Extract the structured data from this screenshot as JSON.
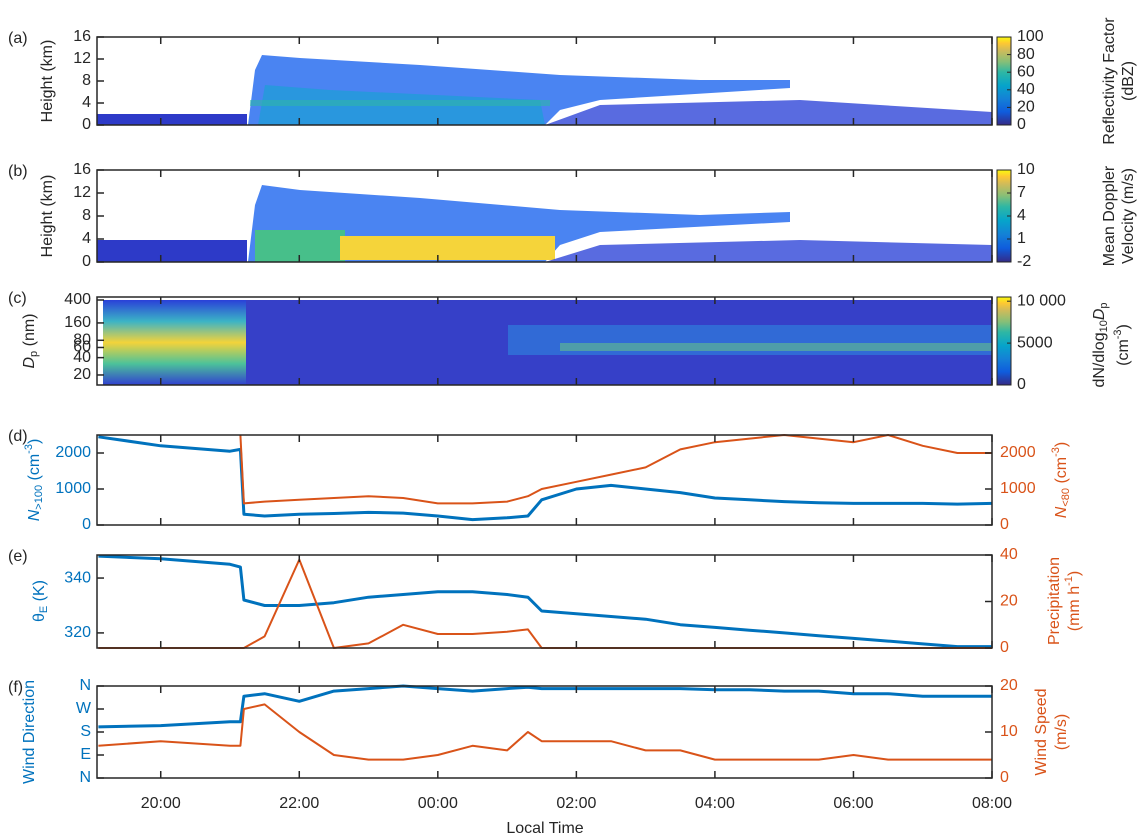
{
  "x_axis": {
    "label": "Local Time",
    "xlim": [
      19.08,
      32
    ],
    "xticks": [
      {
        "value": 20,
        "label": "20:00"
      },
      {
        "value": 22,
        "label": "22:00"
      },
      {
        "value": 24,
        "label": "00:00"
      },
      {
        "value": 26,
        "label": "02:00"
      },
      {
        "value": 28,
        "label": "04:00"
      },
      {
        "value": 30,
        "label": "06:00"
      },
      {
        "value": 32,
        "label": "08:00"
      }
    ]
  },
  "chart_data": [
    {
      "type": "heatmap",
      "panel": "(a)",
      "ylabel": "Height (km)",
      "ylim": [
        0,
        16
      ],
      "yticks": [
        0,
        4,
        8,
        12,
        16
      ],
      "colorbar": {
        "lim": [
          0,
          100
        ],
        "ticks": [
          0,
          20,
          40,
          60,
          80,
          100
        ],
        "label": [
          "Reflectivity Factor",
          "(dBZ)"
        ]
      }
    },
    {
      "type": "heatmap",
      "panel": "(b)",
      "ylabel": "Height (km)",
      "ylim": [
        0,
        16
      ],
      "yticks": [
        0,
        4,
        8,
        12,
        16
      ],
      "colorbar": {
        "lim": [
          -2,
          10
        ],
        "ticks": [
          -2,
          1,
          4,
          7,
          10
        ],
        "label": [
          "Mean Doppler",
          "Velocity (m/s)"
        ]
      }
    },
    {
      "type": "heatmap",
      "panel": "(c)",
      "ylabel": [
        "D",
        "p",
        " (nm)"
      ],
      "log_y": true,
      "ylim": [
        13.4,
        451
      ],
      "yticks": [
        20,
        40,
        60,
        80,
        160,
        400
      ],
      "colorbar": {
        "lim": [
          0,
          10500
        ],
        "ticks": [
          0,
          5000,
          {
            "value": 10000,
            "label": "10 000"
          }
        ],
        "label": [
          "dN/dlog",
          "10",
          "D",
          "p",
          "(cm",
          "-3",
          ")"
        ]
      }
    },
    {
      "type": "line",
      "panel": "(d)",
      "ylabel": [
        "N",
        ">100",
        " (cm",
        "-3",
        ")"
      ],
      "y2label": [
        "N",
        "<80",
        " (cm",
        "-3",
        ")"
      ],
      "ylim": [
        0,
        2500
      ],
      "yticks": [
        0,
        1000,
        2000
      ],
      "y2lim": [
        0,
        2500
      ],
      "y2ticks": [
        0,
        1000,
        2000
      ],
      "x": [
        19.1,
        20,
        21,
        21.15,
        21.2,
        21.5,
        22,
        22.5,
        23,
        23.5,
        24,
        24.5,
        25,
        25.3,
        25.5,
        26,
        26.5,
        27,
        27.5,
        28,
        28.5,
        29,
        29.5,
        30,
        30.5,
        31,
        31.5,
        32
      ],
      "series": [
        {
          "color": "#0072BD",
          "values": [
            2450,
            2200,
            2050,
            2100,
            300,
            250,
            300,
            320,
            350,
            330,
            250,
            150,
            200,
            250,
            700,
            1000,
            1100,
            1000,
            900,
            750,
            700,
            650,
            620,
            600,
            600,
            600,
            580,
            600
          ]
        },
        {
          "color": "#D95319",
          "axis": "y2",
          "values": [
            null,
            null,
            null,
            2500,
            600,
            650,
            700,
            750,
            800,
            750,
            600,
            600,
            650,
            800,
            1000,
            1200,
            1400,
            1600,
            2100,
            2300,
            2400,
            2500,
            2400,
            2300,
            2500,
            2200,
            2000,
            2000
          ]
        }
      ]
    },
    {
      "type": "line",
      "panel": "(e)",
      "ylabel": [
        "θ",
        "E",
        " (K)"
      ],
      "y2label": [
        "Precipitation",
        "(mm h",
        "-1",
        ")"
      ],
      "ylim": [
        314.5,
        348.4
      ],
      "yticks": [
        320,
        340
      ],
      "y2lim": [
        0,
        40
      ],
      "y2ticks": [
        0,
        20,
        40
      ],
      "x": [
        19.1,
        20,
        21,
        21.15,
        21.2,
        21.5,
        22,
        22.5,
        23,
        23.5,
        24,
        24.5,
        25,
        25.3,
        25.5,
        26,
        26.5,
        27,
        27.5,
        28,
        28.5,
        29,
        29.5,
        30,
        30.5,
        31,
        31.5,
        32
      ],
      "series": [
        {
          "color": "#0072BD",
          "values": [
            348,
            347,
            345,
            344,
            332,
            330,
            330,
            331,
            333,
            334,
            335,
            335,
            334,
            333,
            328,
            327,
            326,
            325,
            323,
            322,
            321,
            320,
            319,
            318,
            317,
            316,
            315,
            315
          ]
        },
        {
          "color": "#D95319",
          "axis": "y2",
          "values": [
            0,
            0,
            0,
            0,
            0,
            5,
            38,
            0,
            2,
            10,
            6,
            6,
            7,
            8,
            0,
            0,
            0,
            0,
            0,
            0,
            0,
            0,
            0,
            0,
            0,
            0,
            0,
            0
          ]
        }
      ]
    },
    {
      "type": "line",
      "panel": "(f)",
      "ylabel": "Wind Direction",
      "y2label": [
        "Wind Speed",
        "(m/s)"
      ],
      "ylim": [
        0,
        360
      ],
      "yticks": [
        {
          "value": 0,
          "label": "N"
        },
        {
          "value": 90,
          "label": "E"
        },
        {
          "value": 180,
          "label": "S"
        },
        {
          "value": 270,
          "label": "W"
        },
        {
          "value": 360,
          "label": "N"
        }
      ],
      "y2lim": [
        0,
        20
      ],
      "y2ticks": [
        0,
        10,
        20
      ],
      "x": [
        19.1,
        20,
        21,
        21.15,
        21.2,
        21.5,
        22,
        22.5,
        23,
        23.5,
        24,
        24.5,
        25,
        25.3,
        25.5,
        26,
        26.5,
        27,
        27.5,
        28,
        28.5,
        29,
        29.5,
        30,
        30.5,
        31,
        31.5,
        32
      ],
      "series": [
        {
          "color": "#0072BD",
          "values": [
            200,
            205,
            220,
            220,
            320,
            330,
            300,
            340,
            350,
            360,
            350,
            340,
            350,
            355,
            350,
            350,
            350,
            350,
            350,
            345,
            345,
            340,
            340,
            330,
            330,
            320,
            320,
            320
          ]
        },
        {
          "color": "#D95319",
          "axis": "y2",
          "values": [
            7,
            8,
            7,
            7,
            15,
            16,
            10,
            5,
            4,
            4,
            5,
            7,
            6,
            10,
            8,
            8,
            8,
            6,
            6,
            4,
            4,
            4,
            4,
            5,
            4,
            4,
            4,
            4
          ]
        }
      ]
    }
  ]
}
